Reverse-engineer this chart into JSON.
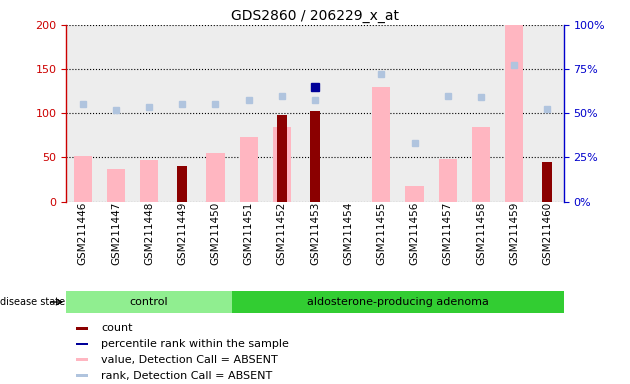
{
  "title": "GDS2860 / 206229_x_at",
  "samples": [
    "GSM211446",
    "GSM211447",
    "GSM211448",
    "GSM211449",
    "GSM211450",
    "GSM211451",
    "GSM211452",
    "GSM211453",
    "GSM211454",
    "GSM211455",
    "GSM211456",
    "GSM211457",
    "GSM211458",
    "GSM211459",
    "GSM211460"
  ],
  "ctrl_count": 5,
  "aden_count": 10,
  "value_absent": [
    52,
    37,
    47,
    null,
    55,
    73,
    85,
    null,
    null,
    130,
    18,
    48,
    85,
    200,
    null
  ],
  "rank_absent_left": [
    110,
    104,
    107,
    110,
    111,
    115,
    119,
    115,
    null,
    145,
    66,
    120,
    118,
    155,
    105
  ],
  "count": [
    null,
    null,
    null,
    40,
    null,
    null,
    98,
    103,
    null,
    null,
    null,
    null,
    null,
    null,
    45
  ],
  "percentile_rank_left": [
    null,
    null,
    null,
    null,
    null,
    null,
    null,
    130,
    null,
    null,
    null,
    null,
    null,
    null,
    null
  ],
  "ylim_left": [
    0,
    200
  ],
  "ylim_right": [
    0,
    100
  ],
  "yticks_left": [
    0,
    50,
    100,
    150,
    200
  ],
  "yticks_right": [
    0,
    25,
    50,
    75,
    100
  ],
  "color_count": "#8B0000",
  "color_percentile": "#000099",
  "color_value_absent": "#FFB6C1",
  "color_rank_absent": "#B0C4DE",
  "color_left_axis": "#CC0000",
  "color_right_axis": "#0000CC",
  "bg_control": "#90EE90",
  "bg_adenoma": "#32CD32",
  "legend_items": [
    {
      "label": "count",
      "color": "#8B0000"
    },
    {
      "label": "percentile rank within the sample",
      "color": "#000099"
    },
    {
      "label": "value, Detection Call = ABSENT",
      "color": "#FFB6C1"
    },
    {
      "label": "rank, Detection Call = ABSENT",
      "color": "#B0C4DE"
    }
  ]
}
